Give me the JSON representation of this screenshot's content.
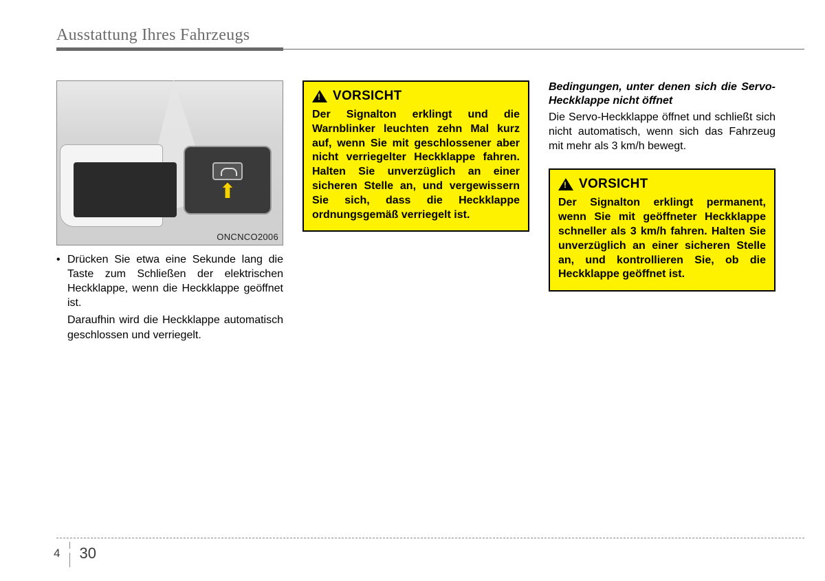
{
  "header": {
    "title": "Ausstattung Ihres Fahrzeugs"
  },
  "figure": {
    "code": "ONCNCO2006"
  },
  "bullet": {
    "text1": "Drücken Sie etwa eine Sekunde lang die Taste zum Schließen der elektrischen Heckklappe, wenn die Heckklappe geöffnet ist.",
    "text2": "Daraufhin wird die Heckklappe automatisch geschlossen und verriegelt."
  },
  "caution1": {
    "title": "VORSICHT",
    "body": "Der Signalton erklingt und die Warnblinker leuchten zehn Mal kurz auf, wenn Sie mit geschlossener aber nicht verriegelter Heckklappe fahren. Halten Sie unverzüglich an einer sicheren Stelle an, und vergewissern Sie sich, dass die Heckklappe ordnungsgemäß verriegelt ist."
  },
  "section": {
    "subhead": "Bedingungen, unter denen sich die Servo-Heckklappe nicht öffnet",
    "body": "Die Servo-Heckklappe öffnet und schließt sich nicht automatisch, wenn sich das Fahrzeug mit mehr als 3 km/h bewegt."
  },
  "caution2": {
    "title": "VORSICHT",
    "body": "Der Signalton erklingt permanent, wenn Sie mit geöffneter Heckklappe schneller als 3 km/h fahren. Halten Sie unverzüglich an einer sicheren Stelle an, und kontrollieren Sie, ob die Heckklappe geöffnet ist."
  },
  "pagenum": {
    "chapter": "4",
    "page": "30"
  }
}
